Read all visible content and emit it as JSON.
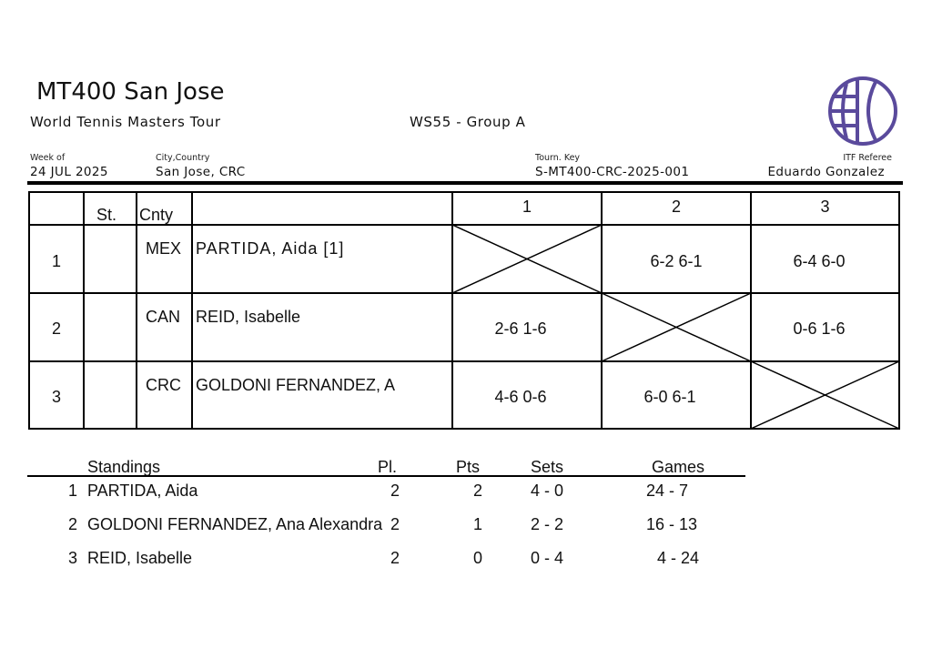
{
  "header": {
    "title": "MT400 San Jose",
    "tour": "World Tennis Masters Tour",
    "event": "WS55 - Group A",
    "week_label": "Week of",
    "week_value": "24 JUL 2025",
    "city_label": "City,Country",
    "city_value": "San Jose, CRC",
    "key_label": "Tourn. Key",
    "key_value": "S-MT400-CRC-2025-001",
    "referee_label": "ITF Referee",
    "referee_value": "Eduardo Gonzalez",
    "logo_color": "#5a4a9c"
  },
  "grid": {
    "headers": {
      "st": "St.",
      "cnty": "Cnty",
      "cols": [
        "1",
        "2",
        "3"
      ]
    },
    "rows": [
      {
        "num": "1",
        "cnty": "MEX",
        "name": "PARTIDA, Aida [1]",
        "scores": [
          "",
          "6-2 6-1",
          "6-4 6-0"
        ]
      },
      {
        "num": "2",
        "cnty": "CAN",
        "name": "REID, Isabelle",
        "scores": [
          "2-6 1-6",
          "",
          "0-6 1-6"
        ]
      },
      {
        "num": "3",
        "cnty": "CRC",
        "name": "GOLDONI FERNANDEZ, A",
        "scores": [
          "4-6 0-6",
          "6-0 6-1",
          ""
        ]
      }
    ]
  },
  "standings": {
    "headers": {
      "standings": "Standings",
      "pl": "Pl.",
      "pts": "Pts",
      "sets": "Sets",
      "games": "Games"
    },
    "rows": [
      {
        "rank": "1",
        "name": "PARTIDA, Aida",
        "pl": "2",
        "pts": "2",
        "sets": "4 - 0",
        "games": "24 - 7"
      },
      {
        "rank": "2",
        "name": "GOLDONI FERNANDEZ, Ana Alexandra",
        "pl": "2",
        "pts": "1",
        "sets": "2 - 2",
        "games": "16 - 13"
      },
      {
        "rank": "3",
        "name": "REID, Isabelle",
        "pl": "2",
        "pts": "0",
        "sets": "0 - 4",
        "games": "4 - 24"
      }
    ]
  }
}
